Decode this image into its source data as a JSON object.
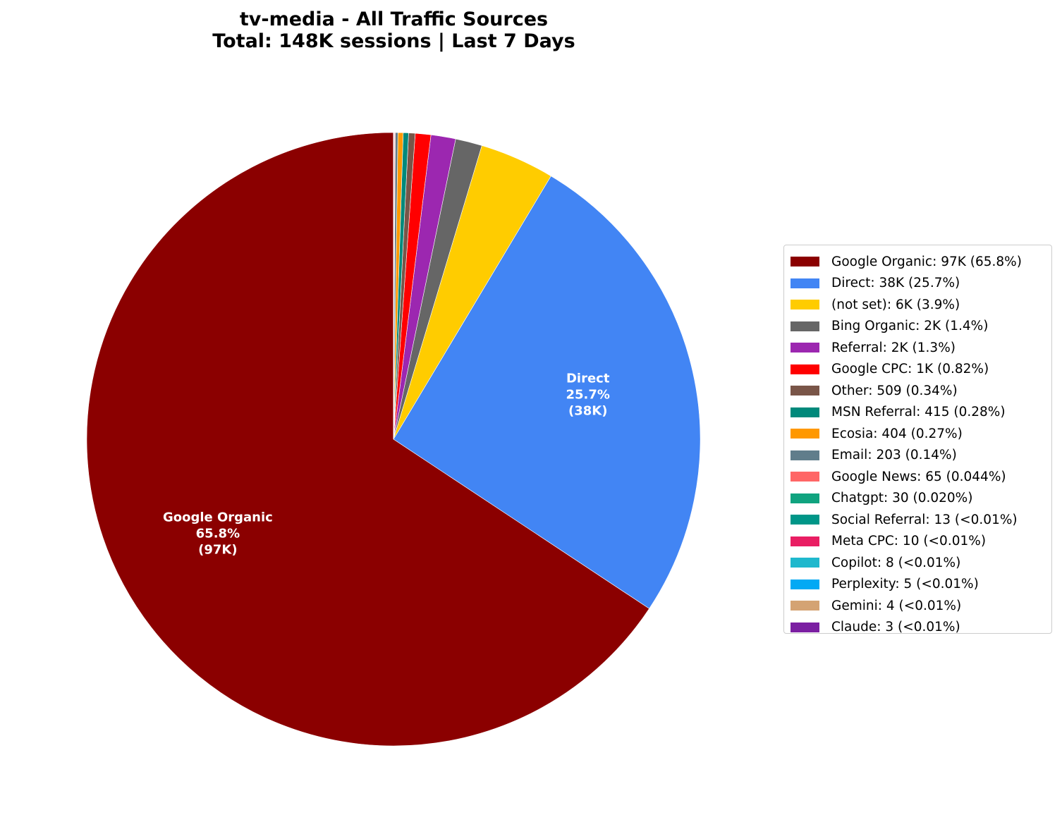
{
  "title": {
    "line1": "tv-media - All Traffic Sources",
    "line2": "Total: 148K sessions | Last 7 Days"
  },
  "chart_data": {
    "type": "pie",
    "title": "tv-media - All Traffic Sources\nTotal: 148K sessions | Last 7 Days",
    "total_label": "148K sessions",
    "period": "Last 7 Days",
    "start_angle": 90,
    "direction": "counterclockwise",
    "legend_position": "right",
    "slices": [
      {
        "label": "Google Organic",
        "value": 97000,
        "percent": 65.8,
        "value_label": "97K",
        "pct_label": "65.8%",
        "color": "#8B0000",
        "legend": "Google Organic: 97K (65.8%)",
        "show_label": true
      },
      {
        "label": "Direct",
        "value": 38000,
        "percent": 25.7,
        "value_label": "38K",
        "pct_label": "25.7%",
        "color": "#4285F4",
        "legend": "Direct: 38K (25.7%)",
        "show_label": true
      },
      {
        "label": "(not set)",
        "value": 5800,
        "percent": 3.9,
        "value_label": "6K",
        "pct_label": "3.9%",
        "color": "#FFCC00",
        "legend": "(not set): 6K (3.9%)",
        "show_label": false
      },
      {
        "label": "Bing Organic",
        "value": 2070,
        "percent": 1.4,
        "value_label": "2K",
        "pct_label": "1.4%",
        "color": "#666666",
        "legend": "Bing Organic: 2K (1.4%)",
        "show_label": false
      },
      {
        "label": "Referral",
        "value": 1920,
        "percent": 1.3,
        "value_label": "2K",
        "pct_label": "1.3%",
        "color": "#9C27B0",
        "legend": "Referral: 2K (1.3%)",
        "show_label": false
      },
      {
        "label": "Google CPC",
        "value": 1210,
        "percent": 0.82,
        "value_label": "1K",
        "pct_label": "0.82%",
        "color": "#FF0000",
        "legend": "Google CPC: 1K (0.82%)",
        "show_label": false
      },
      {
        "label": "Other",
        "value": 509,
        "percent": 0.34,
        "value_label": "509",
        "pct_label": "0.34%",
        "color": "#795548",
        "legend": "Other: 509 (0.34%)",
        "show_label": false
      },
      {
        "label": "MSN Referral",
        "value": 415,
        "percent": 0.28,
        "value_label": "415",
        "pct_label": "0.28%",
        "color": "#00897B",
        "legend": "MSN Referral: 415 (0.28%)",
        "show_label": false
      },
      {
        "label": "Ecosia",
        "value": 404,
        "percent": 0.27,
        "value_label": "404",
        "pct_label": "0.27%",
        "color": "#FF9800",
        "legend": "Ecosia: 404 (0.27%)",
        "show_label": false
      },
      {
        "label": "Email",
        "value": 203,
        "percent": 0.14,
        "value_label": "203",
        "pct_label": "0.14%",
        "color": "#607D8B",
        "legend": "Email: 203 (0.14%)",
        "show_label": false
      },
      {
        "label": "Google News",
        "value": 65,
        "percent": 0.044,
        "value_label": "65",
        "pct_label": "0.044%",
        "color": "#FF6666",
        "legend": "Google News: 65 (0.044%)",
        "show_label": false
      },
      {
        "label": "Chatgpt",
        "value": 30,
        "percent": 0.02,
        "value_label": "30",
        "pct_label": "0.020%",
        "color": "#10A37F",
        "legend": "Chatgpt: 30 (0.020%)",
        "show_label": false
      },
      {
        "label": "Social Referral",
        "value": 13,
        "percent": 0.009,
        "value_label": "13",
        "pct_label": "<0.01%",
        "color": "#009688",
        "legend": "Social Referral: 13 (<0.01%)",
        "show_label": false
      },
      {
        "label": "Meta CPC",
        "value": 10,
        "percent": 0.007,
        "value_label": "10",
        "pct_label": "<0.01%",
        "color": "#E91E63",
        "legend": "Meta CPC: 10 (<0.01%)",
        "show_label": false
      },
      {
        "label": "Copilot",
        "value": 8,
        "percent": 0.005,
        "value_label": "8",
        "pct_label": "<0.01%",
        "color": "#1FB8CD",
        "legend": "Copilot: 8 (<0.01%)",
        "show_label": false
      },
      {
        "label": "Perplexity",
        "value": 5,
        "percent": 0.003,
        "value_label": "5",
        "pct_label": "<0.01%",
        "color": "#03A9F4",
        "legend": "Perplexity: 5 (<0.01%)",
        "show_label": false
      },
      {
        "label": "Gemini",
        "value": 4,
        "percent": 0.003,
        "value_label": "4",
        "pct_label": "<0.01%",
        "color": "#D4A373",
        "legend": "Gemini: 4 (<0.01%)",
        "show_label": false
      },
      {
        "label": "Claude",
        "value": 3,
        "percent": 0.002,
        "value_label": "3",
        "pct_label": "<0.01%",
        "color": "#7B1FA2",
        "legend": "Claude: 3 (<0.01%)",
        "show_label": false
      }
    ]
  }
}
